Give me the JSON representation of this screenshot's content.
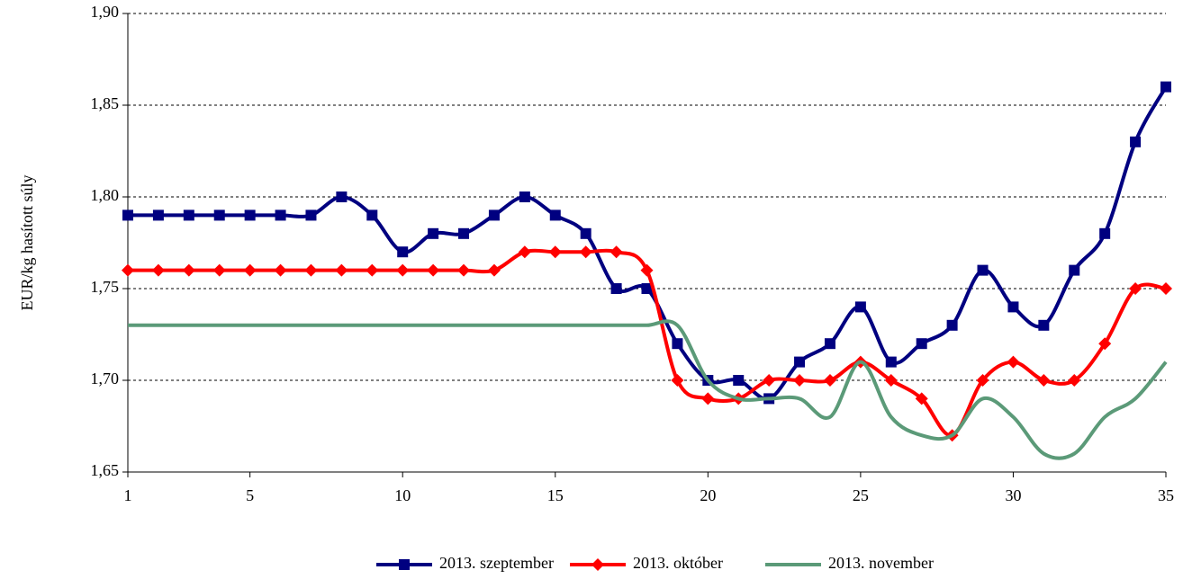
{
  "chart_data": {
    "type": "line",
    "ylabel": "EUR/kg hasított súly",
    "x": [
      1,
      2,
      3,
      4,
      5,
      6,
      7,
      8,
      9,
      10,
      11,
      12,
      13,
      14,
      15,
      16,
      17,
      18,
      19,
      20,
      21,
      22,
      23,
      24,
      25,
      26,
      27,
      28,
      29,
      30,
      31,
      32,
      33,
      34,
      35
    ],
    "xlim": [
      1,
      35
    ],
    "xticks": [
      1,
      5,
      10,
      15,
      20,
      25,
      30,
      35
    ],
    "ylim": [
      1.65,
      1.9
    ],
    "yticks": [
      {
        "value": 1.65,
        "label": "1,65"
      },
      {
        "value": 1.7,
        "label": "1,70"
      },
      {
        "value": 1.75,
        "label": "1,75"
      },
      {
        "value": 1.8,
        "label": "1,80"
      },
      {
        "value": 1.85,
        "label": "1,85"
      },
      {
        "value": 1.9,
        "label": "1,90"
      }
    ],
    "grid": true,
    "legend": "bottom",
    "series": [
      {
        "name": "2013. szeptember",
        "color": "#000080",
        "marker": "square",
        "values": [
          1.79,
          1.79,
          1.79,
          1.79,
          1.79,
          1.79,
          1.79,
          1.8,
          1.79,
          1.77,
          1.78,
          1.78,
          1.79,
          1.8,
          1.79,
          1.78,
          1.75,
          1.75,
          1.72,
          1.7,
          1.7,
          1.69,
          1.71,
          1.72,
          1.74,
          1.71,
          1.72,
          1.73,
          1.76,
          1.74,
          1.73,
          1.76,
          1.78,
          1.83,
          1.86
        ]
      },
      {
        "name": "2013. október",
        "color": "#ff0000",
        "marker": "diamond",
        "values": [
          1.76,
          1.76,
          1.76,
          1.76,
          1.76,
          1.76,
          1.76,
          1.76,
          1.76,
          1.76,
          1.76,
          1.76,
          1.76,
          1.77,
          1.77,
          1.77,
          1.77,
          1.76,
          1.7,
          1.69,
          1.69,
          1.7,
          1.7,
          1.7,
          1.71,
          1.7,
          1.69,
          1.67,
          1.7,
          1.71,
          1.7,
          1.7,
          1.72,
          1.75,
          1.75
        ]
      },
      {
        "name": "2013. november",
        "color": "#5b9a78",
        "marker": "none",
        "values": [
          1.73,
          1.73,
          1.73,
          1.73,
          1.73,
          1.73,
          1.73,
          1.73,
          1.73,
          1.73,
          1.73,
          1.73,
          1.73,
          1.73,
          1.73,
          1.73,
          1.73,
          1.73,
          1.73,
          1.7,
          1.69,
          1.69,
          1.69,
          1.68,
          1.71,
          1.68,
          1.67,
          1.67,
          1.69,
          1.68,
          1.66,
          1.66,
          1.68,
          1.69,
          1.71
        ]
      }
    ]
  }
}
